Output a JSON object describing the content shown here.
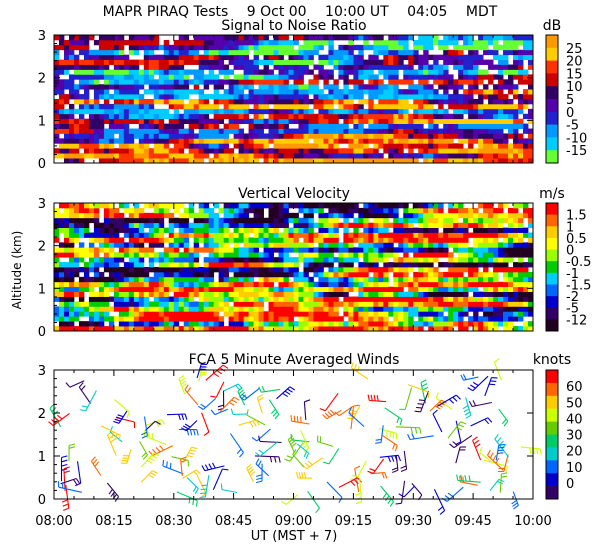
{
  "header": {
    "title": "MAPR PIRAQ Tests",
    "date": "9 Oct 00",
    "time_ut": "10:00 UT",
    "time_local": "04:05",
    "tz": "MDT"
  },
  "chart_data": [
    {
      "type": "heatmap",
      "title": "Signal to Noise Ratio",
      "units": "dB",
      "xlim": [
        0,
        120
      ],
      "ylim": [
        0,
        3
      ],
      "yticks": [
        "0",
        "1",
        "2",
        "3"
      ],
      "colorbar_labels": [
        "25",
        "20",
        "15",
        "10",
        "5",
        "0",
        "-5",
        "-10",
        "-15"
      ],
      "colorbar_colors": [
        "#ff9900",
        "#ffcc00",
        "#ff3300",
        "#cc0000",
        "#330066",
        "#5500aa",
        "#2222cc",
        "#0099ff",
        "#00ccff",
        "#66ff33"
      ],
      "seed": 11
    },
    {
      "type": "heatmap",
      "title": "Vertical Velocity",
      "units": "m/s",
      "ylabel": "Altitude (km)",
      "xlim": [
        0,
        120
      ],
      "ylim": [
        0,
        3
      ],
      "yticks": [
        "0",
        "1",
        "2",
        "3"
      ],
      "colorbar_labels": [
        "1.5",
        "1",
        "0.5",
        "0",
        "-0.5",
        "-1",
        "-1.5",
        "-2",
        "-5",
        "-12"
      ],
      "colorbar_colors": [
        "#ff0000",
        "#ff6600",
        "#ffcc00",
        "#ffff00",
        "#99ff00",
        "#00cc00",
        "#00ccff",
        "#0066ff",
        "#0000cc",
        "#330066",
        "#220022"
      ],
      "seed": 29
    },
    {
      "type": "scatter",
      "title": "FCA 5 Minute Averaged Winds",
      "units": "knots",
      "xlabel": "UT  (MST + 7)",
      "xlim": [
        0,
        120
      ],
      "ylim": [
        0,
        3
      ],
      "yticks": [
        "0",
        "1",
        "2",
        "3"
      ],
      "xticks": [
        "08:00",
        "08:15",
        "08:30",
        "08:45",
        "09:00",
        "09:15",
        "09:30",
        "09:45",
        "10:00"
      ],
      "colorbar_labels": [
        "60",
        "50",
        "40",
        "30",
        "20",
        "10",
        "0"
      ],
      "colorbar_colors": [
        "#ff0000",
        "#ff6600",
        "#ffcc00",
        "#ccff00",
        "#66cc00",
        "#00cc66",
        "#00cccc",
        "#0066ff",
        "#0000cc",
        "#330066"
      ],
      "seed": 47
    }
  ]
}
